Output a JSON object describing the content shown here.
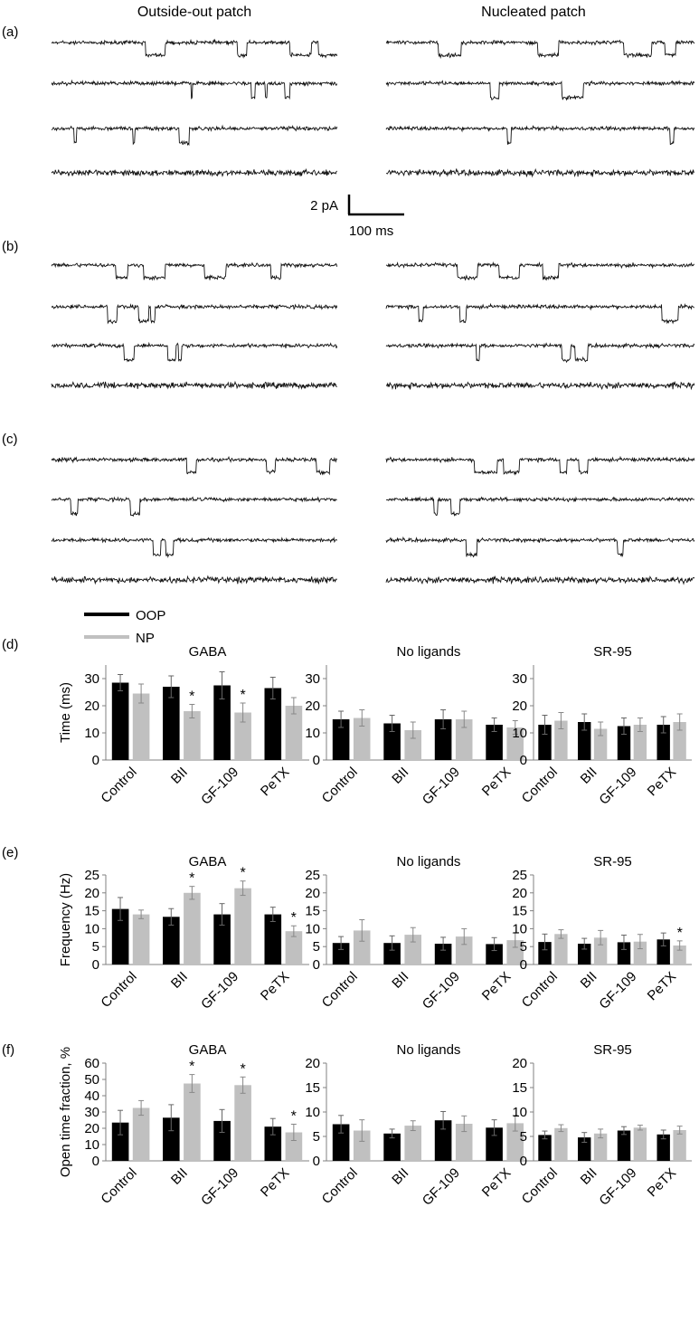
{
  "headers": {
    "left": "Outside-out patch",
    "right": "Nucleated patch"
  },
  "panel_labels": [
    "(a)",
    "(b)",
    "(c)",
    "(d)",
    "(e)",
    "(f)"
  ],
  "scalebar": {
    "current": "2 pA",
    "time": "100 ms"
  },
  "legend": {
    "oop": "OOP",
    "np": "NP"
  },
  "colors": {
    "oop": "#000000",
    "np": "#c0c0c0",
    "axis": "#808080",
    "trace": "#111111"
  },
  "chart_data": [
    {
      "type": "bar",
      "panel": "(d)",
      "title": "GABA",
      "ylabel": "Time (ms)",
      "ylim": [
        0,
        35
      ],
      "yticks": [
        0,
        10,
        20,
        30
      ],
      "categories": [
        "Control",
        "BII",
        "GF-109",
        "PeTX"
      ],
      "series": [
        {
          "name": "OOP",
          "values": [
            28.5,
            27.0,
            27.5,
            26.5
          ],
          "errors": [
            3.0,
            4.0,
            5.0,
            4.0
          ]
        },
        {
          "name": "NP",
          "values": [
            24.5,
            18.0,
            17.5,
            20.0
          ],
          "errors": [
            3.5,
            2.5,
            3.5,
            3.0
          ]
        }
      ],
      "stars": [
        {
          "series": 1,
          "index": 1,
          "label": "*"
        },
        {
          "series": 1,
          "index": 2,
          "label": "*"
        }
      ]
    },
    {
      "type": "bar",
      "panel": "(d)",
      "title": "No ligands",
      "ylabel": "",
      "ylim": [
        0,
        35
      ],
      "yticks": [
        0,
        10,
        20,
        30
      ],
      "categories": [
        "Control",
        "BII",
        "GF-109",
        "PeTX"
      ],
      "series": [
        {
          "name": "OOP",
          "values": [
            15.0,
            13.5,
            15.0,
            13.0
          ],
          "errors": [
            3.0,
            3.0,
            3.5,
            2.5
          ]
        },
        {
          "name": "NP",
          "values": [
            15.5,
            11.0,
            15.0,
            12.0
          ],
          "errors": [
            3.0,
            3.0,
            3.0,
            2.5
          ]
        }
      ],
      "stars": []
    },
    {
      "type": "bar",
      "panel": "(d)",
      "title": "SR-95",
      "ylabel": "",
      "ylim": [
        0,
        35
      ],
      "yticks": [
        0,
        10,
        20,
        30
      ],
      "categories": [
        "Control",
        "BII",
        "GF-109",
        "PeTX"
      ],
      "series": [
        {
          "name": "OOP",
          "values": [
            13.0,
            14.0,
            12.5,
            13.0
          ],
          "errors": [
            3.5,
            3.0,
            3.0,
            3.0
          ]
        },
        {
          "name": "NP",
          "values": [
            14.5,
            11.5,
            13.0,
            14.0
          ],
          "errors": [
            3.0,
            2.5,
            2.5,
            3.0
          ]
        }
      ],
      "stars": []
    },
    {
      "type": "bar",
      "panel": "(e)",
      "title": "GABA",
      "ylabel": "Frequency (Hz)",
      "ylim": [
        0,
        25
      ],
      "yticks": [
        0,
        5,
        10,
        15,
        20,
        25
      ],
      "categories": [
        "Control",
        "BII",
        "GF-109",
        "PeTX"
      ],
      "series": [
        {
          "name": "OOP",
          "values": [
            15.5,
            13.3,
            14.0,
            14.0
          ],
          "errors": [
            3.2,
            2.3,
            3.0,
            2.0
          ]
        },
        {
          "name": "NP",
          "values": [
            14.0,
            20.0,
            21.3,
            9.3
          ],
          "errors": [
            1.2,
            1.8,
            2.0,
            1.5
          ]
        }
      ],
      "stars": [
        {
          "series": 1,
          "index": 1,
          "label": "*"
        },
        {
          "series": 1,
          "index": 2,
          "label": "*"
        },
        {
          "series": 1,
          "index": 3,
          "label": "*"
        }
      ]
    },
    {
      "type": "bar",
      "panel": "(e)",
      "title": "No ligands",
      "ylabel": "",
      "ylim": [
        0,
        25
      ],
      "yticks": [
        0,
        5,
        10,
        15,
        20,
        25
      ],
      "categories": [
        "Control",
        "BII",
        "GF-109",
        "PeTX"
      ],
      "series": [
        {
          "name": "OOP",
          "values": [
            6.0,
            6.0,
            5.8,
            5.7
          ],
          "errors": [
            1.8,
            2.0,
            1.8,
            1.8
          ]
        },
        {
          "name": "NP",
          "values": [
            9.5,
            8.3,
            7.8,
            6.8
          ],
          "errors": [
            3.0,
            2.0,
            2.2,
            2.0
          ]
        }
      ],
      "stars": []
    },
    {
      "type": "bar",
      "panel": "(e)",
      "title": "SR-95",
      "ylabel": "",
      "ylim": [
        0,
        25
      ],
      "yticks": [
        0,
        5,
        10,
        15,
        20,
        25
      ],
      "categories": [
        "Control",
        "BII",
        "GF-109",
        "PeTX"
      ],
      "series": [
        {
          "name": "OOP",
          "values": [
            6.3,
            5.8,
            6.2,
            7.0
          ],
          "errors": [
            2.2,
            1.5,
            2.0,
            1.8
          ]
        },
        {
          "name": "NP",
          "values": [
            8.5,
            7.5,
            6.4,
            5.3
          ],
          "errors": [
            1.2,
            2.0,
            2.0,
            1.3
          ]
        }
      ],
      "stars": [
        {
          "series": 1,
          "index": 3,
          "label": "*"
        }
      ]
    },
    {
      "type": "bar",
      "panel": "(f)",
      "title": "GABA",
      "ylabel": "Open time fraction, %",
      "ylim": [
        0,
        60
      ],
      "yticks": [
        0,
        10,
        20,
        30,
        40,
        50,
        60
      ],
      "categories": [
        "Control",
        "BII",
        "GF-109",
        "PeTX"
      ],
      "series": [
        {
          "name": "OOP",
          "values": [
            23.5,
            26.5,
            24.5,
            21.0
          ],
          "errors": [
            7.5,
            8.0,
            7.0,
            5.0
          ]
        },
        {
          "name": "NP",
          "values": [
            32.5,
            47.5,
            46.5,
            17.5
          ],
          "errors": [
            4.5,
            5.5,
            5.0,
            5.0
          ]
        }
      ],
      "stars": [
        {
          "series": 1,
          "index": 1,
          "label": "*"
        },
        {
          "series": 1,
          "index": 2,
          "label": "*"
        },
        {
          "series": 1,
          "index": 3,
          "label": "*"
        }
      ]
    },
    {
      "type": "bar",
      "panel": "(f)",
      "title": "No ligands",
      "ylabel": "",
      "ylim": [
        0,
        20
      ],
      "yticks": [
        0,
        5,
        10,
        15,
        20
      ],
      "categories": [
        "Control",
        "BII",
        "GF-109",
        "PeTX"
      ],
      "series": [
        {
          "name": "OOP",
          "values": [
            7.5,
            5.6,
            8.3,
            6.8
          ],
          "errors": [
            1.8,
            0.9,
            1.8,
            1.6
          ]
        },
        {
          "name": "NP",
          "values": [
            6.2,
            7.2,
            7.6,
            7.7
          ],
          "errors": [
            2.2,
            1.0,
            1.6,
            1.6
          ]
        }
      ],
      "stars": []
    },
    {
      "type": "bar",
      "panel": "(f)",
      "title": "SR-95",
      "ylabel": "",
      "ylim": [
        0,
        20
      ],
      "yticks": [
        0,
        5,
        10,
        15,
        20
      ],
      "categories": [
        "Control",
        "BII",
        "GF-109",
        "PeTX"
      ],
      "series": [
        {
          "name": "OOP",
          "values": [
            5.3,
            4.8,
            6.2,
            5.4
          ],
          "errors": [
            0.8,
            1.0,
            0.8,
            0.9
          ]
        },
        {
          "name": "NP",
          "values": [
            6.7,
            5.6,
            6.8,
            6.3
          ],
          "errors": [
            0.7,
            0.9,
            0.5,
            0.8
          ]
        }
      ],
      "stars": []
    }
  ]
}
